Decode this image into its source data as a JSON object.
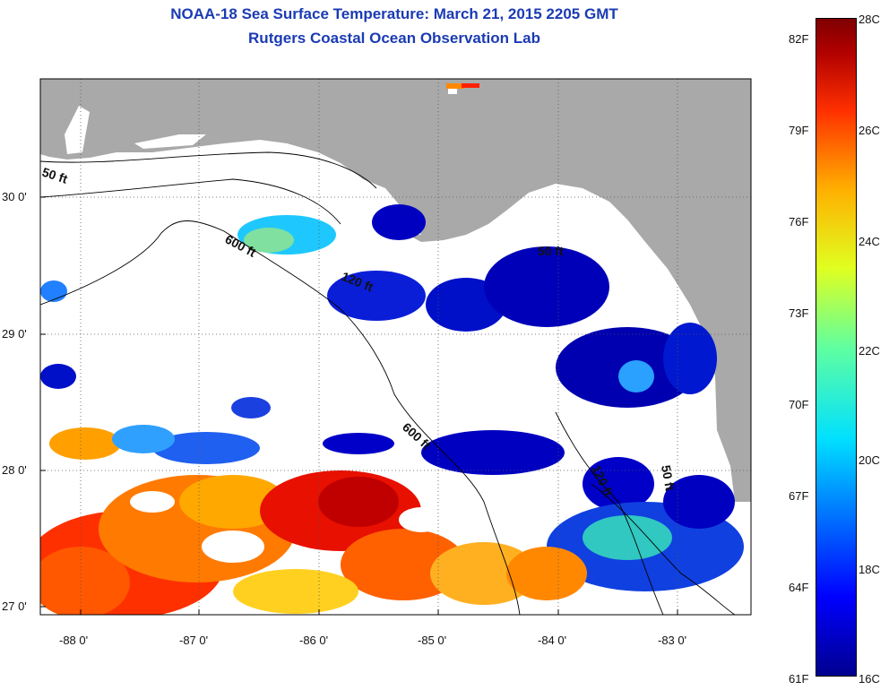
{
  "title": {
    "line1": "NOAA-18 Sea Surface Temperature:  March 21, 2015 2205 GMT",
    "line2": "Rutgers Coastal Ocean Observation Lab"
  },
  "map": {
    "x_ticks": [
      "-88 0'",
      "-87 0'",
      "-86 0'",
      "-85 0'",
      "-84 0'",
      "-83 0'"
    ],
    "y_ticks": [
      "30 0'",
      "29 0'",
      "28 0'",
      "27 0'"
    ],
    "contour_labels": {
      "shelf_50_west": "50 ft",
      "slope_600_north": "600 ft",
      "mid_120": "120 ft",
      "coast_50_east": "50 ft",
      "slope_600_south": "600 ft",
      "mid_120_south": "120 ft",
      "coast_50_south": "50 ft"
    },
    "colors": {
      "land": "#a9a9a9",
      "cloud_mask": "#ffffff",
      "cold": "#0000c8",
      "warm": "#e60000"
    }
  },
  "colorbar": {
    "fahrenheit": [
      "82F",
      "79F",
      "76F",
      "73F",
      "70F",
      "67F",
      "64F",
      "61F"
    ],
    "celsius": [
      "28C",
      "26C",
      "24C",
      "22C",
      "20C",
      "18C",
      "16C"
    ]
  }
}
